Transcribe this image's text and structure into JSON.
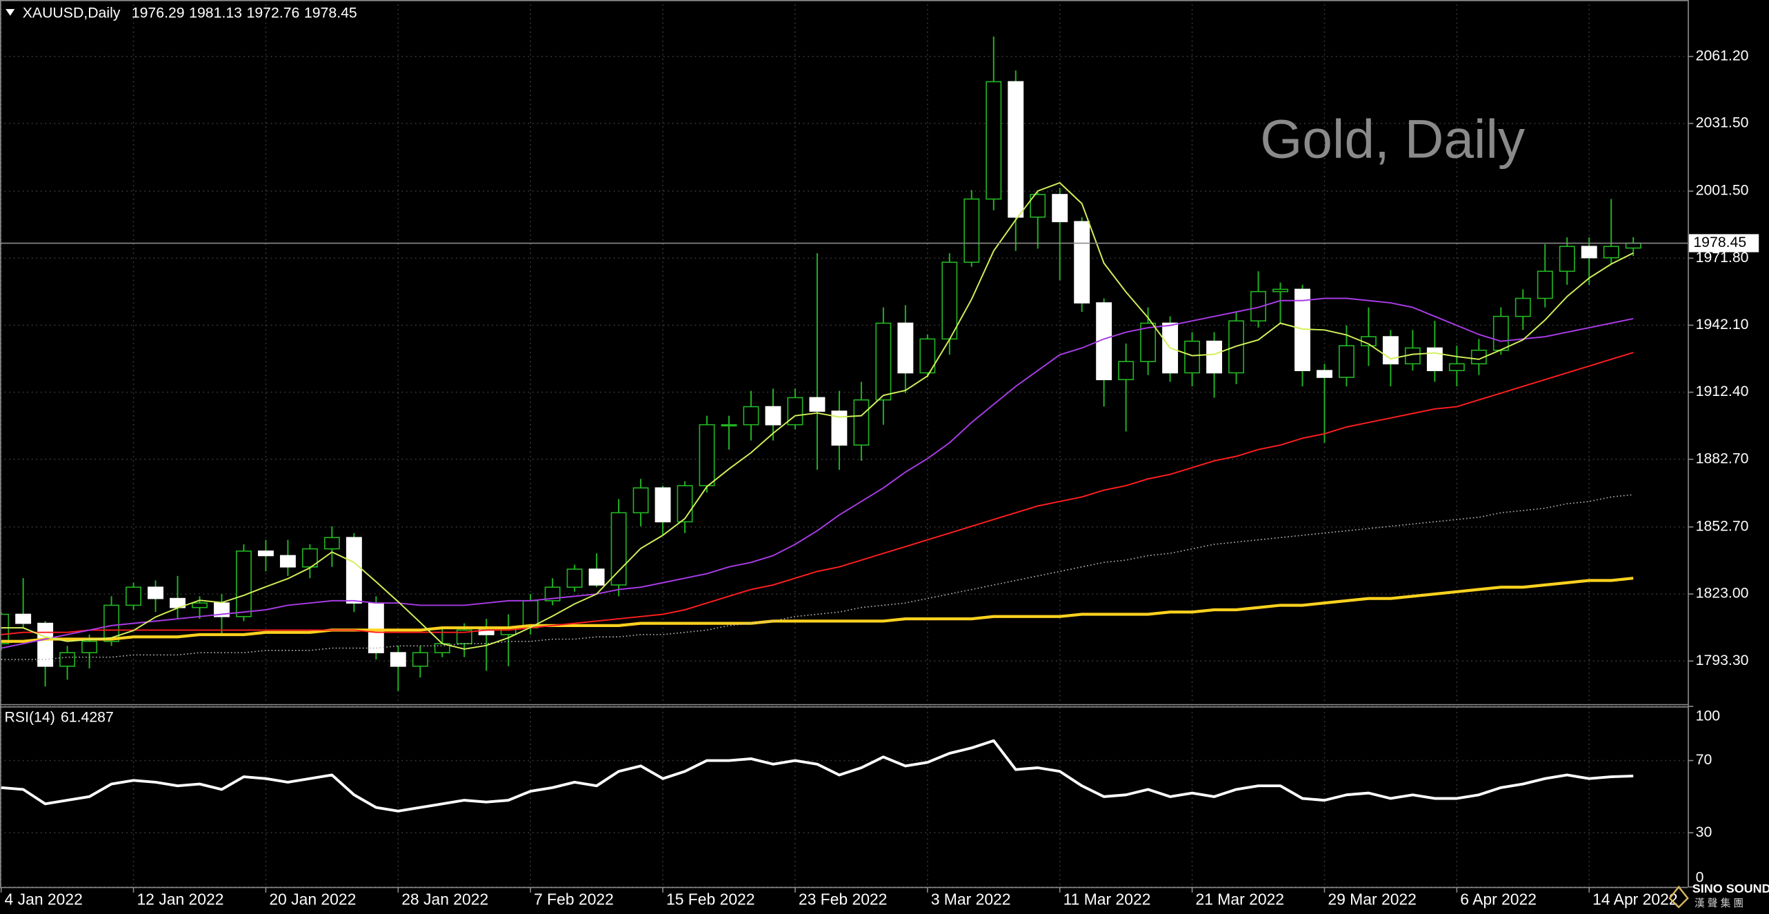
{
  "chart_data": [
    {
      "type": "candlestick",
      "header": {
        "symbol": "XAUUSD,Daily",
        "open": 1976.29,
        "high": 1981.13,
        "low": 1972.76,
        "close": 1978.45
      },
      "watermark": "Gold, Daily",
      "categories": [
        "4 Jan 2022",
        null,
        null,
        null,
        null,
        null,
        "12 Jan 2022",
        null,
        null,
        null,
        null,
        null,
        "20 Jan 2022",
        null,
        null,
        null,
        null,
        null,
        "28 Jan 2022",
        null,
        null,
        null,
        null,
        null,
        "7 Feb 2022",
        null,
        null,
        null,
        null,
        null,
        "15 Feb 2022",
        null,
        null,
        null,
        null,
        null,
        "23 Feb 2022",
        null,
        null,
        null,
        null,
        null,
        "3 Mar 2022",
        null,
        null,
        null,
        null,
        null,
        "11 Mar 2022",
        null,
        null,
        null,
        null,
        null,
        "21 Mar 2022",
        null,
        null,
        null,
        null,
        null,
        "29 Mar 2022",
        null,
        null,
        null,
        null,
        null,
        "6 Apr 2022",
        null,
        null,
        null,
        null,
        null,
        "14 Apr 2022",
        null,
        null
      ],
      "open": [
        1801,
        1814,
        1810,
        1791,
        1797,
        1802,
        1818,
        1826,
        1821,
        1817,
        1819,
        1813,
        1842,
        1840,
        1835,
        1843,
        1848,
        1819,
        1797,
        1791,
        1797,
        1801,
        1807,
        1805,
        1808,
        1820,
        1826,
        1834,
        1827,
        1859,
        1870,
        1855,
        1871,
        1898,
        1898,
        1906,
        1898,
        1910,
        1904,
        1889,
        1909,
        1943,
        1921,
        1936,
        1970,
        1998,
        2050,
        1990,
        2000,
        1988,
        1952,
        1918,
        1926,
        1943,
        1921,
        1935,
        1921,
        1944,
        1957,
        1958,
        1922,
        1919,
        1933,
        1937,
        1925,
        1932,
        1922,
        1925,
        1931,
        1946,
        1954,
        1966,
        1977,
        1972,
        1976.29
      ],
      "high": [
        1815,
        1830,
        1811,
        1800,
        1805,
        1822,
        1828,
        1829,
        1831,
        1822,
        1823,
        1845,
        1847,
        1847,
        1845,
        1853,
        1850,
        1822,
        1800,
        1800,
        1808,
        1810,
        1812,
        1814,
        1823,
        1830,
        1836,
        1841,
        1865,
        1874,
        1871,
        1873,
        1902,
        1902,
        1913,
        1914,
        1914,
        1974,
        1913,
        1917,
        1950,
        1951,
        1938,
        1974,
        2002,
        2070,
        2055,
        2001,
        2003,
        1990,
        1954,
        1934,
        1950,
        1946,
        1939,
        1939,
        1948,
        1966,
        1961,
        1960,
        1925,
        1942,
        1950,
        1940,
        1940,
        1944,
        1933,
        1936,
        1950,
        1958,
        1978,
        1981,
        1981,
        1998,
        1981.13
      ],
      "low": [
        1798,
        1808,
        1782,
        1785,
        1790,
        1800,
        1816,
        1815,
        1812,
        1812,
        1805,
        1811,
        1833,
        1831,
        1830,
        1835,
        1815,
        1794,
        1780,
        1786,
        1795,
        1795,
        1789,
        1791,
        1805,
        1818,
        1824,
        1826,
        1822,
        1853,
        1849,
        1850,
        1868,
        1887,
        1891,
        1891,
        1896,
        1878,
        1878,
        1882,
        1898,
        1912,
        1919,
        1929,
        1968,
        1993,
        1975,
        1976,
        1962,
        1948,
        1906,
        1895,
        1920,
        1917,
        1915,
        1910,
        1916,
        1941,
        1943,
        1915,
        1890,
        1915,
        1924,
        1915,
        1922,
        1917,
        1915,
        1920,
        1929,
        1940,
        1950,
        1960,
        1960,
        1969,
        1972.76
      ],
      "close": [
        1814,
        1810,
        1791,
        1797,
        1802,
        1818,
        1826,
        1821,
        1817,
        1819,
        1813,
        1842,
        1840,
        1835,
        1843,
        1848,
        1819,
        1797,
        1791,
        1797,
        1801,
        1807,
        1805,
        1808,
        1820,
        1826,
        1834,
        1827,
        1859,
        1870,
        1855,
        1871,
        1898,
        1898,
        1906,
        1898,
        1910,
        1904,
        1889,
        1909,
        1943,
        1921,
        1936,
        1970,
        1998,
        2050,
        1990,
        2000,
        1988,
        1952,
        1918,
        1926,
        1943,
        1921,
        1935,
        1921,
        1944,
        1957,
        1958,
        1922,
        1919,
        1933,
        1937,
        1925,
        1932,
        1922,
        1925,
        1931,
        1946,
        1954,
        1966,
        1977,
        1972,
        1977,
        1978.45
      ],
      "up_color": "#000000",
      "down_color": "#ffffff",
      "wick_color": "#22b422",
      "overlays": [
        {
          "color": "#ffd21e",
          "style": "thick",
          "values": [
            1802,
            1802,
            1803,
            1803,
            1803,
            1803,
            1804,
            1804,
            1804,
            1805,
            1805,
            1805,
            1806,
            1806,
            1806,
            1807,
            1807,
            1807,
            1807,
            1807,
            1808,
            1808,
            1808,
            1808,
            1809,
            1809,
            1809,
            1809,
            1809,
            1810,
            1810,
            1810,
            1810,
            1810,
            1810,
            1811,
            1811,
            1811,
            1811,
            1811,
            1811,
            1812,
            1812,
            1812,
            1812,
            1813,
            1813,
            1813,
            1813,
            1814,
            1814,
            1814,
            1814,
            1815,
            1815,
            1816,
            1816,
            1817,
            1818,
            1818,
            1819,
            1820,
            1821,
            1821,
            1822,
            1823,
            1824,
            1825,
            1826,
            1826,
            1827,
            1828,
            1829,
            1829,
            1830
          ]
        },
        {
          "color": "#b4b4b4",
          "style": "dotted",
          "values": [
            1794,
            1794,
            1794,
            1795,
            1795,
            1795,
            1796,
            1796,
            1796,
            1797,
            1797,
            1797,
            1798,
            1798,
            1798,
            1799,
            1799,
            1799,
            1800,
            1800,
            1800,
            1801,
            1801,
            1802,
            1802,
            1803,
            1803,
            1804,
            1804,
            1805,
            1805,
            1806,
            1807,
            1809,
            1810,
            1811,
            1813,
            1814,
            1815,
            1817,
            1818,
            1819,
            1821,
            1823,
            1825,
            1827,
            1829,
            1831,
            1833,
            1835,
            1837,
            1838,
            1840,
            1841,
            1843,
            1845,
            1846,
            1847,
            1848,
            1849,
            1850,
            1851,
            1852,
            1853,
            1854,
            1855,
            1856,
            1857,
            1859,
            1860,
            1861,
            1863,
            1864,
            1866,
            1867
          ]
        },
        {
          "color": "#ff1e1e",
          "style": "solid",
          "values": [
            1805,
            1806,
            1806,
            1806,
            1807,
            1807,
            1807,
            1807,
            1807,
            1807,
            1807,
            1807,
            1807,
            1807,
            1807,
            1807,
            1807,
            1806,
            1806,
            1806,
            1806,
            1806,
            1807,
            1807,
            1808,
            1809,
            1810,
            1811,
            1812,
            1813,
            1814,
            1816,
            1819,
            1822,
            1825,
            1827,
            1830,
            1833,
            1835,
            1838,
            1841,
            1844,
            1847,
            1850,
            1853,
            1856,
            1859,
            1862,
            1864,
            1866,
            1869,
            1871,
            1874,
            1876,
            1879,
            1882,
            1884,
            1887,
            1889,
            1892,
            1894,
            1897,
            1899,
            1901,
            1903,
            1905,
            1906,
            1909,
            1912,
            1915,
            1918,
            1921,
            1924,
            1927,
            1930
          ]
        },
        {
          "color": "#a83ce6",
          "style": "solid",
          "values": [
            1799,
            1801,
            1803,
            1805,
            1807,
            1809,
            1810,
            1811,
            1812,
            1813,
            1814,
            1815,
            1816,
            1818,
            1819,
            1820,
            1820,
            1819,
            1819,
            1818,
            1818,
            1818,
            1819,
            1820,
            1820,
            1821,
            1822,
            1823,
            1825,
            1826,
            1828,
            1830,
            1832,
            1835,
            1837,
            1840,
            1845,
            1851,
            1858,
            1864,
            1870,
            1877,
            1883,
            1890,
            1899,
            1907,
            1915,
            1922,
            1929,
            1932,
            1936,
            1939,
            1941,
            1942,
            1944,
            1946,
            1948,
            1950,
            1953,
            1953,
            1954,
            1954,
            1953,
            1952,
            1950,
            1946,
            1942,
            1938,
            1935,
            1936,
            1937,
            1939,
            1941,
            1943,
            1945
          ]
        },
        {
          "color": "#d2f05a",
          "style": "solid",
          "values": [
            1808,
            1808,
            1804,
            1802,
            1802.8,
            1803.6,
            1806.8,
            1812.8,
            1816.8,
            1820.2,
            1819.2,
            1822.4,
            1826.2,
            1829.8,
            1834.6,
            1841.6,
            1837,
            1828.4,
            1819.6,
            1810.4,
            1801,
            1798.6,
            1800.2,
            1803.6,
            1808.2,
            1813.2,
            1818.6,
            1823,
            1833.2,
            1843.2,
            1849,
            1856.4,
            1870.6,
            1878.4,
            1885.6,
            1894.2,
            1902,
            1903.2,
            1901.4,
            1902,
            1911,
            1913.2,
            1919.6,
            1935.8,
            1953.6,
            1975,
            1988.8,
            2001.6,
            2005.2,
            1996,
            1969.6,
            1956.8,
            1945.4,
            1932,
            1928.6,
            1929.2,
            1932.8,
            1935.6,
            1943,
            1940.4,
            1940,
            1937.8,
            1933.8,
            1927.2,
            1929.2,
            1929.8,
            1928.2,
            1927,
            1931.2,
            1935.6,
            1944.4,
            1954.8,
            1963,
            1969.2,
            1974.1
          ]
        }
      ],
      "price_line": 1978.45,
      "ylim": [
        1774.2,
        2086.2
      ],
      "yticks": [
        {
          "value": 1793.3,
          "label": "1793.30"
        },
        {
          "value": 1823,
          "label": "1823.00"
        },
        {
          "value": 1852.7,
          "label": "1852.70"
        },
        {
          "value": 1882.7,
          "label": "1882.70"
        },
        {
          "value": 1912.4,
          "label": "1912.40"
        },
        {
          "value": 1942.1,
          "label": "1942.10"
        },
        {
          "value": 1971.8,
          "label": "1971.80"
        },
        {
          "value": 2001.5,
          "label": "2001.50"
        },
        {
          "value": 2031.5,
          "label": "2031.50"
        },
        {
          "value": 2061.2,
          "label": "2061.20"
        }
      ],
      "grid": true
    },
    {
      "type": "line",
      "title": "RSI(14)",
      "last_value": 61.4287,
      "color": "#ffffff",
      "values": [
        55,
        54,
        46,
        48,
        50,
        57,
        59,
        58,
        56,
        57,
        54,
        61,
        60,
        58,
        60,
        62,
        51,
        44,
        42,
        44,
        46,
        48,
        47,
        48,
        53,
        55,
        58,
        56,
        64,
        67,
        60,
        64,
        70,
        70,
        71,
        68,
        70,
        68,
        62,
        66,
        72,
        67,
        69,
        74,
        77,
        81,
        65,
        66,
        64,
        56,
        50,
        51,
        54,
        50,
        52,
        50,
        54,
        56,
        56,
        49,
        48,
        51,
        52,
        49,
        51,
        49,
        49,
        51,
        55,
        57,
        60,
        62,
        60,
        61,
        61.4287
      ],
      "ylim": [
        0,
        100
      ],
      "yticks": [
        0,
        30,
        70,
        100
      ],
      "grid": true
    }
  ],
  "logo": {
    "name": "SINO SOUND",
    "subtitle": "漢 聲 集 團"
  }
}
